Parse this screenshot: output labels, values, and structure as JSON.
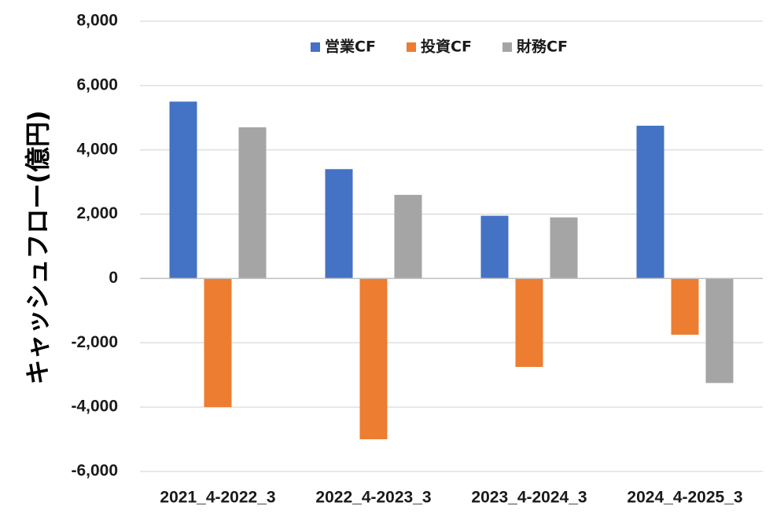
{
  "chart_data": {
    "type": "bar",
    "title": "",
    "xlabel": "",
    "ylabel": "キャッシュフロー(億円)",
    "categories": [
      "2021_4-2022_3",
      "2022_4-2023_3",
      "2023_4-2024_3",
      "2024_4-2025_3"
    ],
    "series": [
      {
        "name": "営業CF",
        "color": "#4472c4",
        "values": [
          5500,
          3400,
          1950,
          4750
        ]
      },
      {
        "name": "投資CF",
        "color": "#ed7d31",
        "values": [
          -4000,
          -5000,
          -2750,
          -1750
        ]
      },
      {
        "name": "財務CF",
        "color": "#a5a5a5",
        "values": [
          4700,
          2600,
          1900,
          -3250
        ]
      }
    ],
    "ylim": [
      -6000,
      8000
    ],
    "yticks": [
      8000,
      6000,
      4000,
      2000,
      0,
      -2000,
      -4000,
      -6000
    ],
    "ytick_labels": [
      "8,000",
      "6,000",
      "4,000",
      "2,000",
      "0",
      "-2,000",
      "-4,000",
      "-6,000"
    ],
    "grid": true,
    "legend_position": "top-center"
  }
}
